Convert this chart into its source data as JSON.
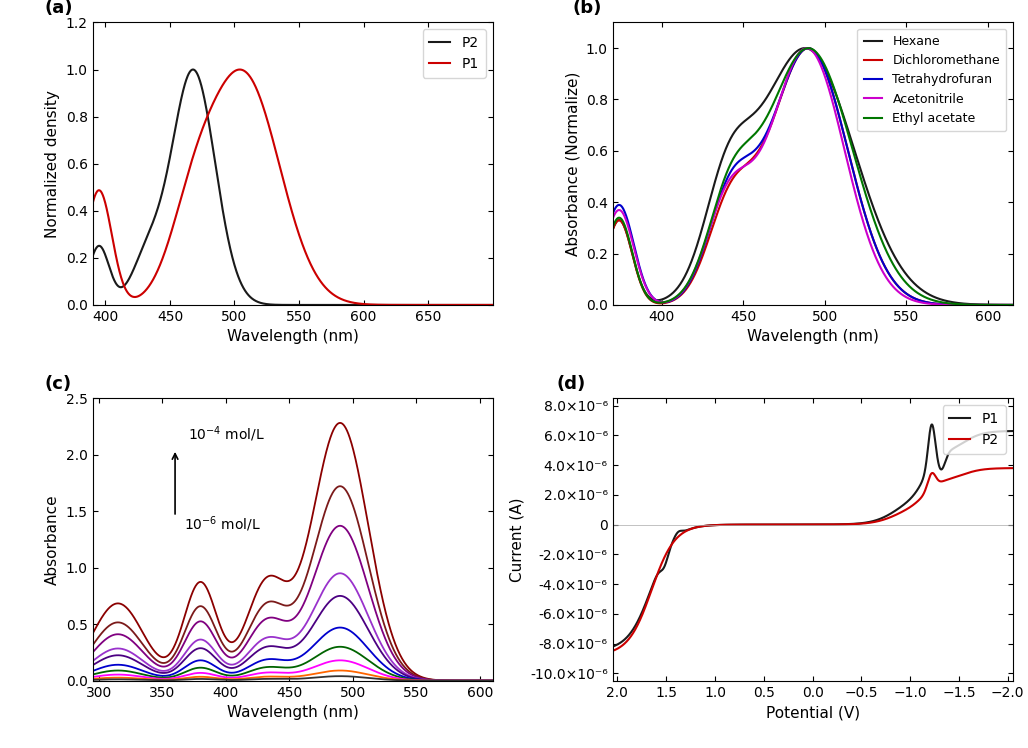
{
  "panel_a": {
    "title": "(a)",
    "xlabel": "Wavelength (nm)",
    "ylabel": "Normalized density",
    "xlim": [
      390,
      700
    ],
    "ylim": [
      0,
      1.2
    ],
    "yticks": [
      0.0,
      0.2,
      0.4,
      0.6,
      0.8,
      1.0,
      1.2
    ],
    "xticks": [
      400,
      450,
      500,
      550,
      600,
      650
    ],
    "P2_color": "#1a1a1a",
    "P1_color": "#cc0000"
  },
  "panel_b": {
    "title": "(b)",
    "xlabel": "Wavelength (nm)",
    "ylabel": "Absorbance (Normalize)",
    "xlim": [
      370,
      615
    ],
    "ylim": [
      0,
      1.1
    ],
    "yticks": [
      0.0,
      0.2,
      0.4,
      0.6,
      0.8,
      1.0
    ],
    "xticks": [
      400,
      450,
      500,
      550,
      600
    ],
    "colors": {
      "Hexane": "#1a1a1a",
      "Dichloromethane": "#cc0000",
      "Tetrahydrofuran": "#0000cc",
      "Acetonitrile": "#cc00cc",
      "Ethyl acetate": "#007700"
    }
  },
  "panel_c": {
    "title": "(c)",
    "xlabel": "Wavelength (nm)",
    "ylabel": "Absorbance",
    "xlim": [
      295,
      610
    ],
    "ylim": [
      0,
      2.5
    ],
    "yticks": [
      0.0,
      0.5,
      1.0,
      1.5,
      2.0,
      2.5
    ],
    "xticks": [
      300,
      350,
      400,
      450,
      500,
      550,
      600
    ],
    "conc_colors": [
      "#8B0000",
      "#7B1A1A",
      "#800080",
      "#9932CC",
      "#4B0082",
      "#0000CD",
      "#006400",
      "#FF00FF",
      "#FF6600",
      "#333333"
    ],
    "conc_scales": [
      2.28,
      1.72,
      1.37,
      0.95,
      0.75,
      0.47,
      0.3,
      0.18,
      0.09,
      0.04
    ]
  },
  "panel_d": {
    "title": "(d)",
    "xlabel": "Potential (V)",
    "ylabel": "Current (A)",
    "xlim": [
      2.05,
      -2.05
    ],
    "ylim": [
      -1.05e-05,
      8.5e-06
    ],
    "yticks": [
      -1e-05,
      -8e-06,
      -6e-06,
      -4e-06,
      -2e-06,
      0,
      2e-06,
      4e-06,
      6e-06,
      8e-06
    ],
    "xticks": [
      2.0,
      1.5,
      1.0,
      0.5,
      0.0,
      -0.5,
      -1.0,
      -1.5,
      -2.0
    ],
    "P1_color": "#1a1a1a",
    "P2_color": "#cc0000"
  }
}
